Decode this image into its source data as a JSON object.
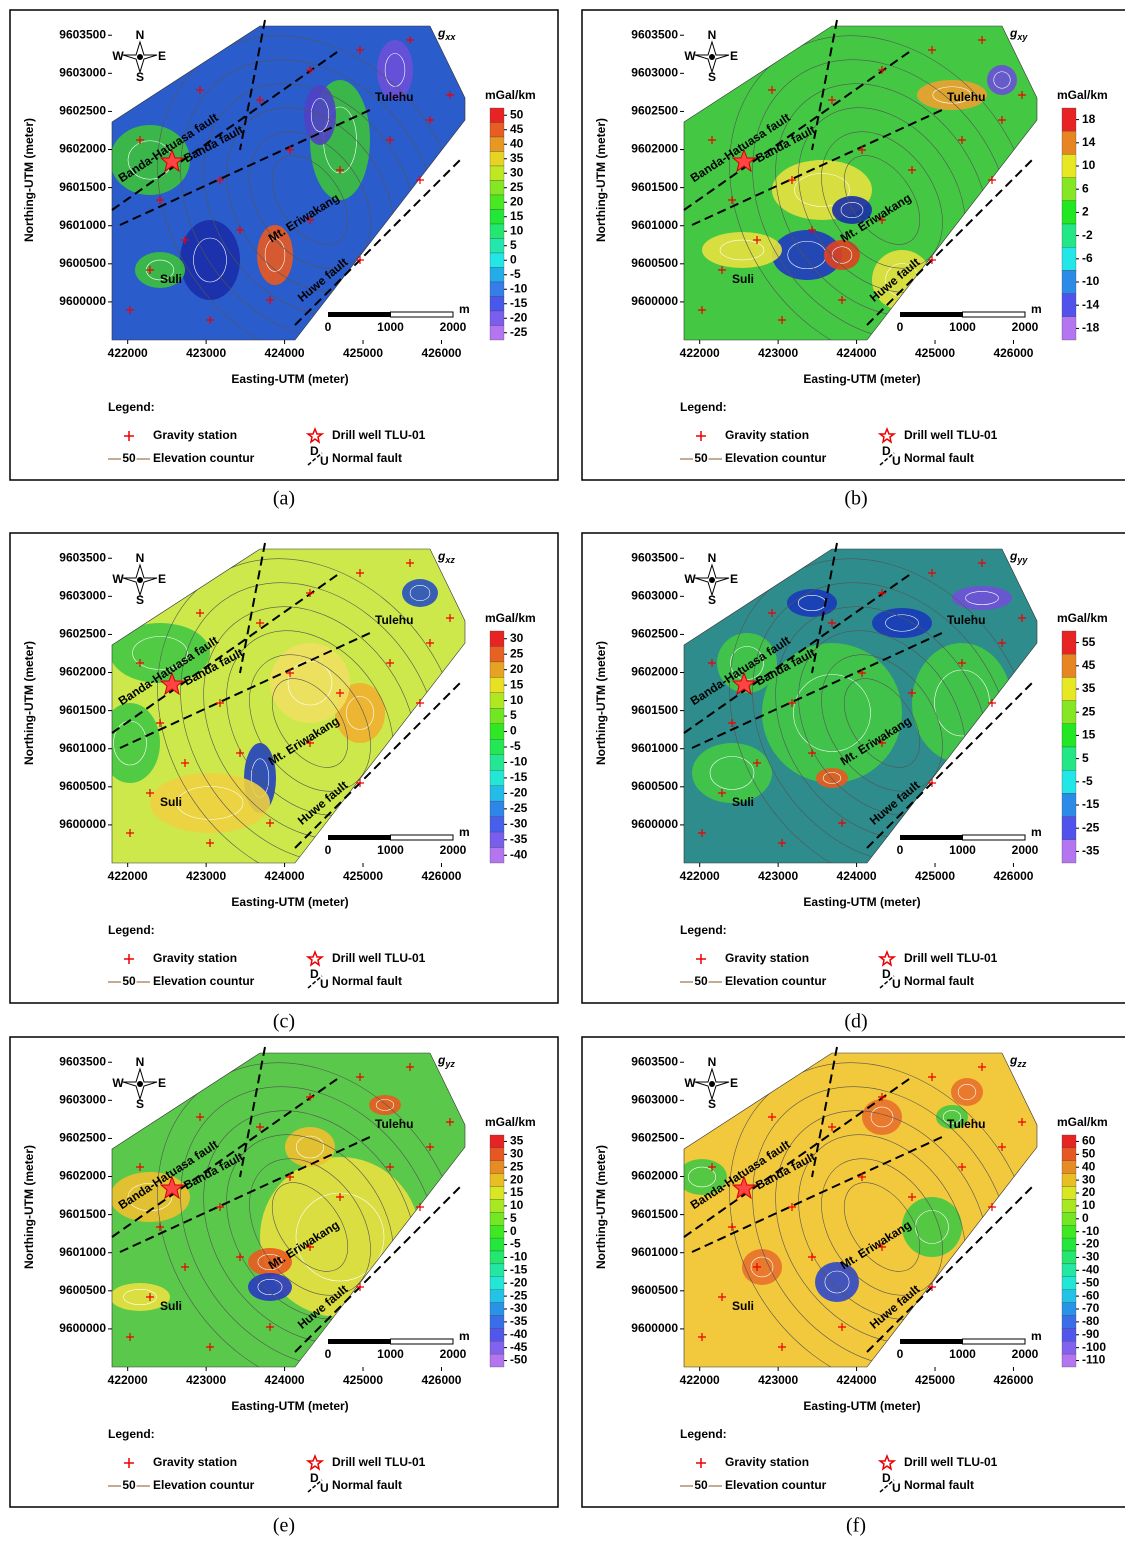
{
  "common": {
    "x_axis_title": "Easting-UTM (meter)",
    "y_axis_title": "Northing-UTM (meter)",
    "xlim": [
      421800,
      426300
    ],
    "xticks": [
      422000,
      423000,
      424000,
      425000,
      426000
    ],
    "ylim": [
      9599500,
      9603700
    ],
    "yticks": [
      9600000,
      9600500,
      9601000,
      9601500,
      9602000,
      9602500,
      9603000,
      9603500
    ],
    "unit": "mGal/km",
    "legend": {
      "title": "Legend:",
      "gravity_station": "Gravity station",
      "drill_well": "Drill well TLU-01",
      "contour": "Elevation countur",
      "contour_sample": "50",
      "fault": "Normal fault",
      "fault_d": "D",
      "fault_u": "U"
    },
    "scale_bar": {
      "labels": [
        0,
        1000,
        2000
      ],
      "unit": "m"
    },
    "compass": {
      "n": "N",
      "s": "S",
      "w": "W",
      "e": "E"
    },
    "places": {
      "tulehu": "Tulehu",
      "suli": "Suli",
      "eriwakang": "Mt. Eriwakang",
      "banda_hatuasa": "Banda-Hatuasa fault",
      "banda": "Banda fault",
      "huwe": "Huwe fault"
    }
  },
  "panels": [
    {
      "label": "(a)",
      "symbol": "g",
      "subscript": "xx",
      "colorbar_ticks": [
        50,
        45,
        40,
        35,
        30,
        25,
        20,
        15,
        10,
        5,
        0,
        -5,
        -10,
        -15,
        -20,
        -25
      ]
    },
    {
      "label": "(b)",
      "symbol": "g",
      "subscript": "xy",
      "colorbar_ticks": [
        18,
        14,
        10,
        6,
        2,
        -2,
        -6,
        -10,
        -14,
        -18
      ]
    },
    {
      "label": "(c)",
      "symbol": "g",
      "subscript": "xz",
      "colorbar_ticks": [
        30,
        25,
        20,
        15,
        10,
        5,
        0,
        -5,
        -10,
        -15,
        -20,
        -25,
        -30,
        -35,
        -40
      ]
    },
    {
      "label": "(d)",
      "symbol": "g",
      "subscript": "yy",
      "colorbar_ticks": [
        55,
        45,
        35,
        25,
        15,
        5,
        -5,
        -15,
        -25,
        -35
      ]
    },
    {
      "label": "(e)",
      "symbol": "g",
      "subscript": "yz",
      "colorbar_ticks": [
        35,
        30,
        25,
        20,
        15,
        10,
        5,
        0,
        -5,
        -10,
        -15,
        -20,
        -25,
        -30,
        -35,
        -40,
        -45,
        -50
      ]
    },
    {
      "label": "(f)",
      "symbol": "g",
      "subscript": "zz",
      "colorbar_ticks": [
        60,
        50,
        40,
        30,
        20,
        10,
        0,
        -10,
        -20,
        -30,
        -40,
        -50,
        -60,
        -70,
        -80,
        -90,
        -100,
        -110
      ]
    }
  ]
}
